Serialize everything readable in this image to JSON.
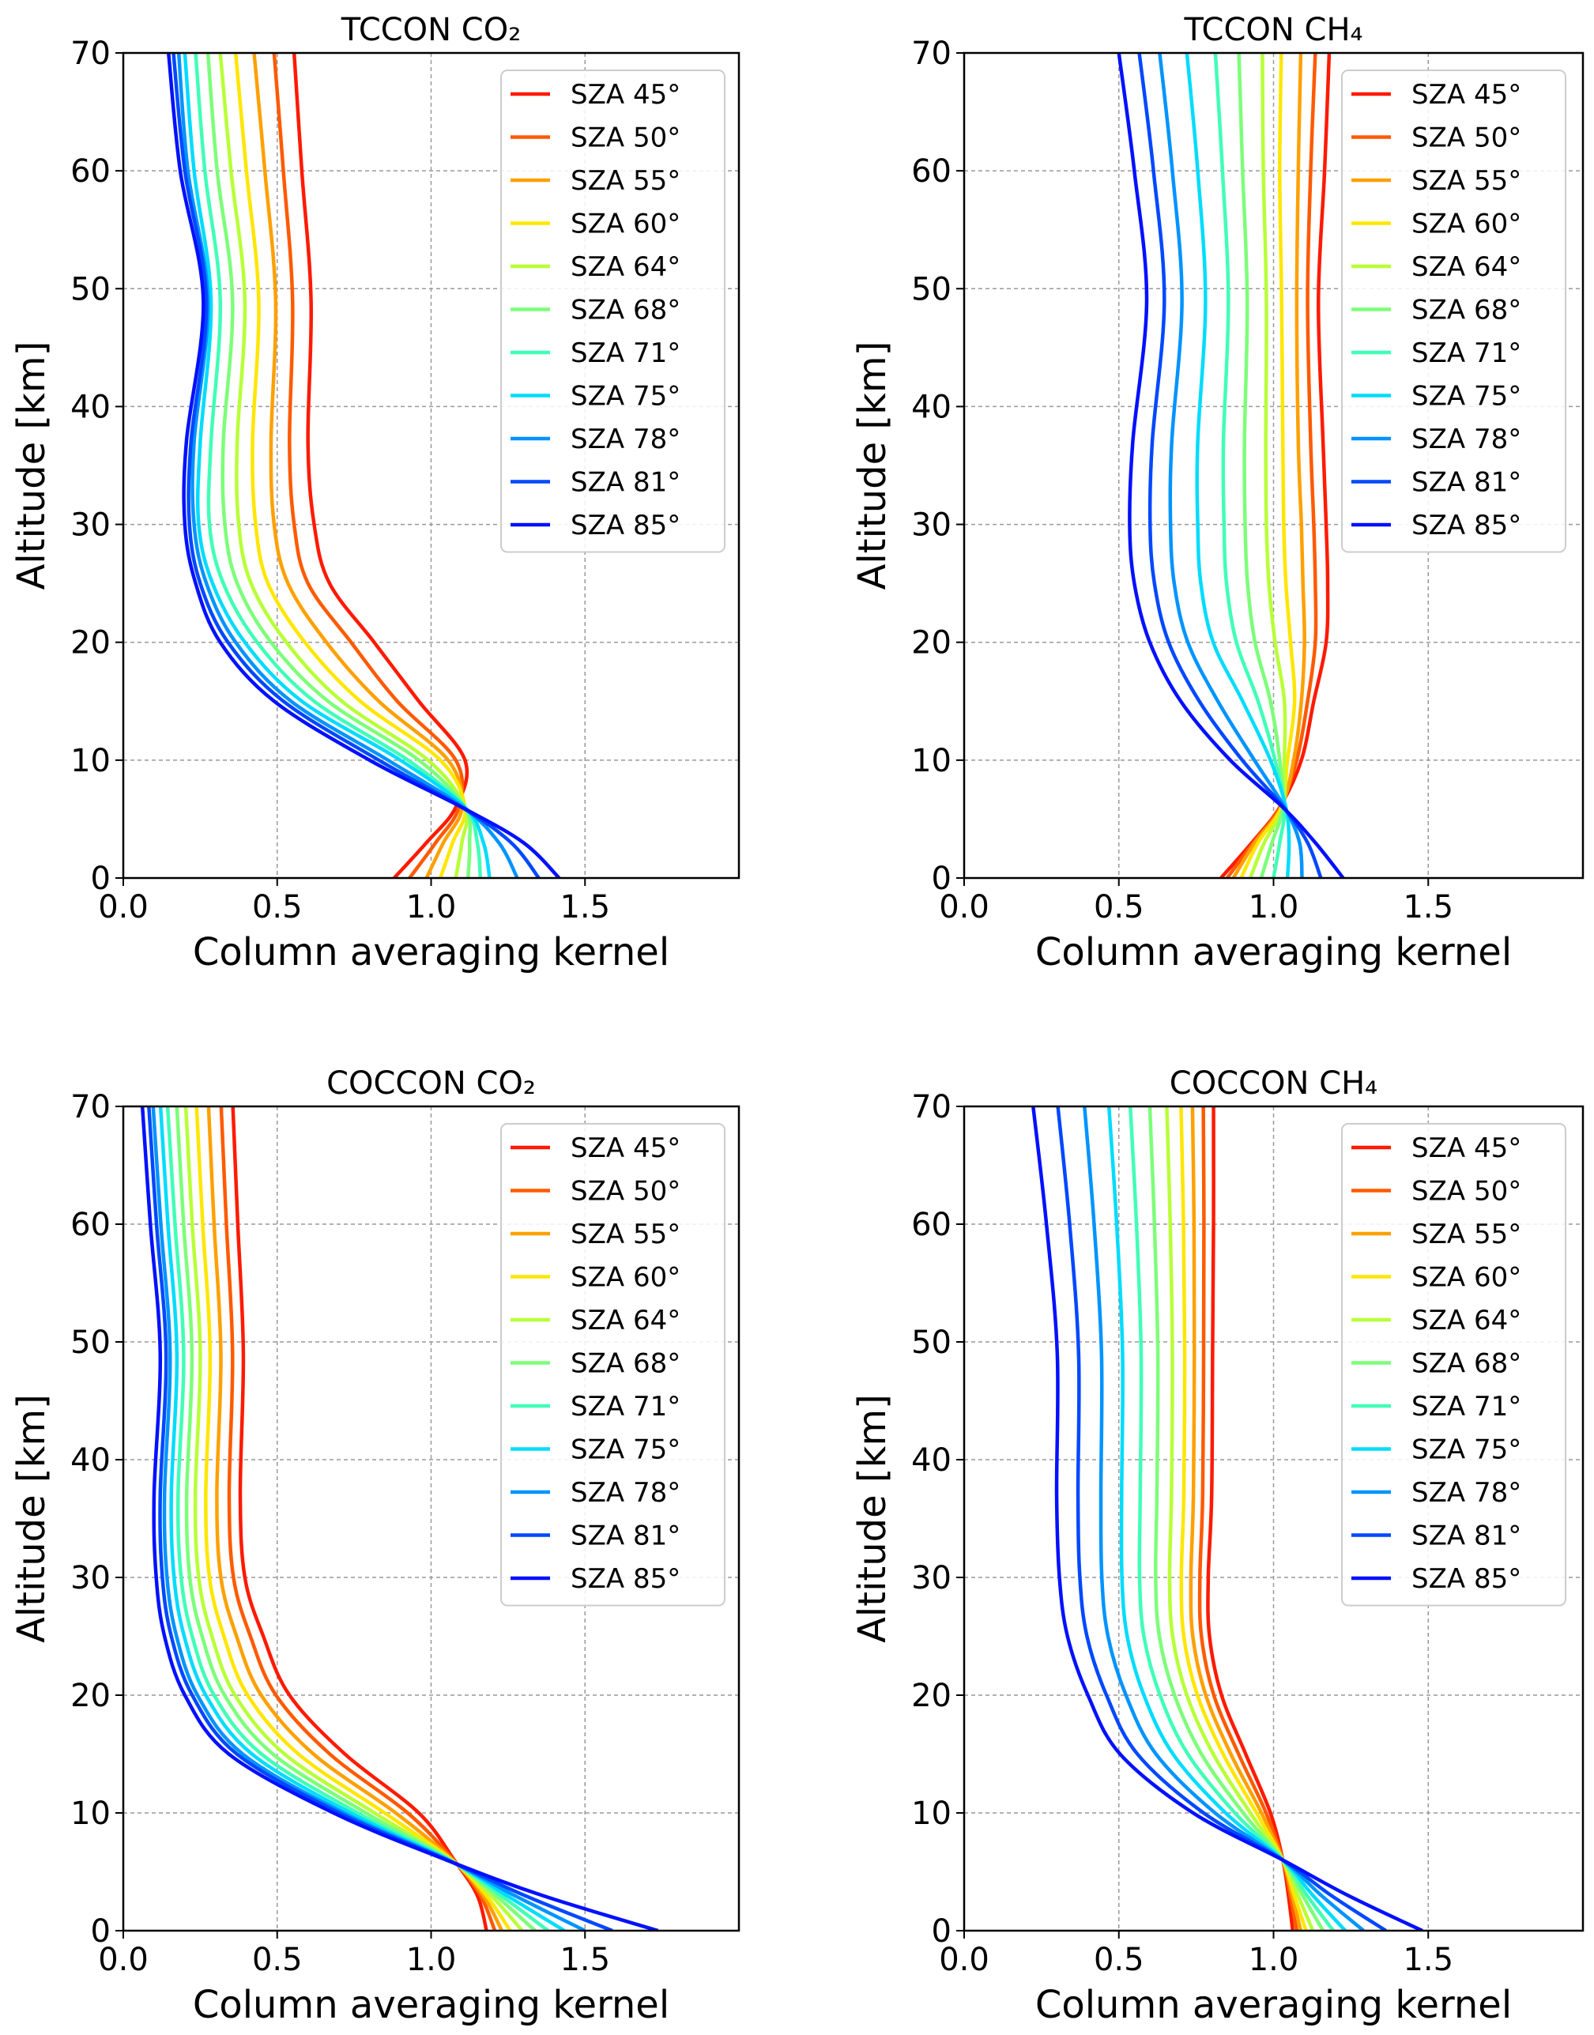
{
  "chart_data": [
    {
      "type": "line",
      "title": "TCCON CO₂",
      "xlabel": "Column averaging kernel",
      "ylabel": "Altitude [km]",
      "xlim": [
        0,
        2.0
      ],
      "ylim": [
        0,
        70
      ],
      "xticks": [
        "0.0",
        "0.5",
        "1.0",
        "1.5"
      ],
      "yticks": [
        "0",
        "10",
        "20",
        "30",
        "40",
        "50",
        "60",
        "70"
      ],
      "grid": true,
      "legend_position": "top-right",
      "y": [
        0,
        3,
        6,
        10,
        15,
        20,
        25,
        30,
        37,
        49,
        60,
        70
      ],
      "series": [
        {
          "name": "SZA 45°",
          "color": "#ff1a00",
          "x": [
            0.88,
            0.985,
            1.08,
            1.11,
            0.96,
            0.815,
            0.67,
            0.62,
            0.6,
            0.61,
            0.58,
            0.555
          ]
        },
        {
          "name": "SZA 50°",
          "color": "#ff5a00",
          "x": [
            0.93,
            1.015,
            1.09,
            1.08,
            0.89,
            0.74,
            0.6,
            0.555,
            0.54,
            0.55,
            0.52,
            0.49
          ]
        },
        {
          "name": "SZA 55°",
          "color": "#ffa000",
          "x": [
            0.985,
            1.04,
            1.1,
            1.055,
            0.83,
            0.66,
            0.535,
            0.49,
            0.48,
            0.495,
            0.46,
            0.425
          ]
        },
        {
          "name": "SZA 60°",
          "color": "#ffe600",
          "x": [
            1.03,
            1.07,
            1.11,
            1.03,
            0.77,
            0.59,
            0.47,
            0.43,
            0.42,
            0.44,
            0.4,
            0.365
          ]
        },
        {
          "name": "SZA 64°",
          "color": "#b8ff37",
          "x": [
            1.08,
            1.1,
            1.11,
            0.99,
            0.71,
            0.53,
            0.415,
            0.375,
            0.37,
            0.395,
            0.35,
            0.315
          ]
        },
        {
          "name": "SZA 68°",
          "color": "#7cff79",
          "x": [
            1.12,
            1.125,
            1.11,
            0.96,
            0.665,
            0.48,
            0.37,
            0.33,
            0.325,
            0.355,
            0.305,
            0.275
          ]
        },
        {
          "name": "SZA 71°",
          "color": "#40ffb7",
          "x": [
            1.16,
            1.15,
            1.11,
            0.925,
            0.62,
            0.435,
            0.325,
            0.28,
            0.285,
            0.315,
            0.265,
            0.235
          ]
        },
        {
          "name": "SZA 75°",
          "color": "#00dcfe",
          "x": [
            1.19,
            1.17,
            1.11,
            0.9,
            0.58,
            0.395,
            0.29,
            0.245,
            0.25,
            0.285,
            0.23,
            0.2
          ]
        },
        {
          "name": "SZA 78°",
          "color": "#0094ff",
          "x": [
            1.28,
            1.22,
            1.105,
            0.86,
            0.545,
            0.365,
            0.27,
            0.23,
            0.23,
            0.275,
            0.21,
            0.18
          ]
        },
        {
          "name": "SZA 81°",
          "color": "#0048ff",
          "x": [
            1.35,
            1.26,
            1.1,
            0.83,
            0.52,
            0.34,
            0.25,
            0.215,
            0.22,
            0.27,
            0.2,
            0.163
          ]
        },
        {
          "name": "SZA 85°",
          "color": "#0010ff",
          "x": [
            1.416,
            1.3,
            1.1,
            0.8,
            0.49,
            0.315,
            0.235,
            0.2,
            0.205,
            0.26,
            0.185,
            0.147
          ]
        }
      ]
    },
    {
      "type": "line",
      "title": "TCCON CH₄",
      "xlabel": "Column averaging kernel",
      "ylabel": "Altitude [km]",
      "xlim": [
        0,
        2.0
      ],
      "ylim": [
        0,
        70
      ],
      "xticks": [
        "0.0",
        "0.5",
        "1.0",
        "1.5"
      ],
      "yticks": [
        "0",
        "10",
        "20",
        "30",
        "40",
        "50",
        "60",
        "70"
      ],
      "grid": true,
      "legend_position": "top-right",
      "y": [
        0,
        3,
        6,
        10,
        15,
        20,
        25,
        30,
        37,
        49,
        60,
        70
      ],
      "series": [
        {
          "name": "SZA 45°",
          "color": "#ff1a00",
          "x": [
            0.83,
            0.93,
            1.02,
            1.09,
            1.13,
            1.17,
            1.175,
            1.17,
            1.16,
            1.145,
            1.165,
            1.18
          ]
        },
        {
          "name": "SZA 50°",
          "color": "#ff5a00",
          "x": [
            0.85,
            0.935,
            1.02,
            1.075,
            1.11,
            1.135,
            1.135,
            1.13,
            1.12,
            1.11,
            1.12,
            1.135
          ]
        },
        {
          "name": "SZA 55°",
          "color": "#ffa000",
          "x": [
            0.87,
            0.94,
            1.025,
            1.065,
            1.09,
            1.1,
            1.095,
            1.09,
            1.08,
            1.075,
            1.08,
            1.088
          ]
        },
        {
          "name": "SZA 60°",
          "color": "#ffe600",
          "x": [
            0.895,
            0.95,
            1.025,
            1.045,
            1.068,
            1.055,
            1.04,
            1.033,
            1.03,
            1.026,
            1.02,
            1.025
          ]
        },
        {
          "name": "SZA 64°",
          "color": "#b8ff37",
          "x": [
            0.925,
            0.97,
            1.03,
            1.035,
            1.035,
            1.005,
            0.985,
            0.977,
            0.975,
            0.977,
            0.967,
            0.964
          ]
        },
        {
          "name": "SZA 68°",
          "color": "#7cff79",
          "x": [
            0.96,
            0.995,
            1.03,
            1.02,
            0.99,
            0.94,
            0.916,
            0.908,
            0.906,
            0.915,
            0.9,
            0.888
          ]
        },
        {
          "name": "SZA 71°",
          "color": "#40ffb7",
          "x": [
            1.0,
            1.02,
            1.035,
            1.005,
            0.95,
            0.88,
            0.848,
            0.84,
            0.838,
            0.854,
            0.835,
            0.812
          ]
        },
        {
          "name": "SZA 75°",
          "color": "#00dcfe",
          "x": [
            1.045,
            1.05,
            1.04,
            0.99,
            0.9,
            0.805,
            0.765,
            0.755,
            0.755,
            0.78,
            0.755,
            0.72
          ]
        },
        {
          "name": "SZA 78°",
          "color": "#0094ff",
          "x": [
            1.092,
            1.084,
            1.036,
            0.938,
            0.82,
            0.723,
            0.679,
            0.667,
            0.671,
            0.704,
            0.673,
            0.632
          ]
        },
        {
          "name": "SZA 81°",
          "color": "#0048ff",
          "x": [
            1.153,
            1.11,
            1.033,
            0.899,
            0.76,
            0.661,
            0.615,
            0.601,
            0.608,
            0.647,
            0.612,
            0.566
          ]
        },
        {
          "name": "SZA 85°",
          "color": "#0010ff",
          "x": [
            1.225,
            1.135,
            1.03,
            0.86,
            0.7,
            0.6,
            0.55,
            0.535,
            0.545,
            0.59,
            0.55,
            0.5
          ]
        }
      ]
    },
    {
      "type": "line",
      "title": "COCCON CO₂",
      "xlabel": "Column averaging kernel",
      "ylabel": "Altitude [km]",
      "xlim": [
        0,
        2.0
      ],
      "ylim": [
        0,
        70
      ],
      "xticks": [
        "0.0",
        "0.5",
        "1.0",
        "1.5"
      ],
      "yticks": [
        "0",
        "10",
        "20",
        "30",
        "40",
        "50",
        "60",
        "70"
      ],
      "grid": true,
      "legend_position": "top-right",
      "y": [
        0,
        3,
        6,
        10,
        15,
        20,
        25,
        30,
        37,
        49,
        60,
        70
      ],
      "series": [
        {
          "name": "SZA 45°",
          "color": "#ff1a00",
          "x": [
            1.18,
            1.15,
            1.075,
            0.96,
            0.72,
            0.54,
            0.455,
            0.395,
            0.38,
            0.39,
            0.372,
            0.356
          ]
        },
        {
          "name": "SZA 50°",
          "color": "#ff5a00",
          "x": [
            1.207,
            1.16,
            1.073,
            0.924,
            0.671,
            0.496,
            0.413,
            0.358,
            0.344,
            0.355,
            0.335,
            0.318
          ]
        },
        {
          "name": "SZA 55°",
          "color": "#ffa000",
          "x": [
            1.23,
            1.169,
            1.07,
            0.885,
            0.618,
            0.448,
            0.368,
            0.317,
            0.304,
            0.317,
            0.295,
            0.277
          ]
        },
        {
          "name": "SZA 60°",
          "color": "#ffe600",
          "x": [
            1.257,
            1.179,
            1.068,
            0.849,
            0.569,
            0.404,
            0.327,
            0.28,
            0.268,
            0.282,
            0.258,
            0.238
          ]
        },
        {
          "name": "SZA 64°",
          "color": "#b8ff37",
          "x": [
            1.296,
            1.194,
            1.065,
            0.816,
            0.524,
            0.363,
            0.288,
            0.245,
            0.234,
            0.25,
            0.224,
            0.203
          ]
        },
        {
          "name": "SZA 68°",
          "color": "#7cff79",
          "x": [
            1.338,
            1.209,
            1.063,
            0.788,
            0.486,
            0.329,
            0.256,
            0.216,
            0.206,
            0.223,
            0.196,
            0.174
          ]
        },
        {
          "name": "SZA 71°",
          "color": "#40ffb7",
          "x": [
            1.38,
            1.226,
            1.06,
            0.761,
            0.449,
            0.295,
            0.224,
            0.188,
            0.178,
            0.196,
            0.168,
            0.144
          ]
        },
        {
          "name": "SZA 75°",
          "color": "#00dcfe",
          "x": [
            1.433,
            1.245,
            1.058,
            0.738,
            0.418,
            0.268,
            0.198,
            0.165,
            0.156,
            0.174,
            0.145,
            0.121
          ]
        },
        {
          "name": "SZA 78°",
          "color": "#0094ff",
          "x": [
            1.5,
            1.27,
            1.055,
            0.716,
            0.388,
            0.241,
            0.173,
            0.142,
            0.134,
            0.152,
            0.122,
            0.097
          ]
        },
        {
          "name": "SZA 81°",
          "color": "#0048ff",
          "x": [
            1.589,
            1.303,
            1.053,
            0.702,
            0.369,
            0.224,
            0.156,
            0.127,
            0.12,
            0.139,
            0.108,
            0.083
          ]
        },
        {
          "name": "SZA 85°",
          "color": "#0010ff",
          "x": [
            1.737,
            1.36,
            1.05,
            0.683,
            0.343,
            0.2,
            0.134,
            0.107,
            0.1,
            0.12,
            0.088,
            0.062
          ]
        }
      ]
    },
    {
      "type": "line",
      "title": "COCCON CH₄",
      "xlabel": "Column averaging kernel",
      "ylabel": "Altitude [km]",
      "xlim": [
        0,
        2.0
      ],
      "ylim": [
        0,
        70
      ],
      "xticks": [
        "0.0",
        "0.5",
        "1.0",
        "1.5"
      ],
      "yticks": [
        "0",
        "10",
        "20",
        "30",
        "40",
        "50",
        "60",
        "70"
      ],
      "grid": true,
      "legend_position": "top-right",
      "y": [
        0,
        3,
        6,
        10,
        15,
        20,
        25,
        30,
        37,
        49,
        60,
        70
      ],
      "series": [
        {
          "name": "SZA 45°",
          "color": "#ff1a00",
          "x": [
            1.062,
            1.048,
            1.03,
            0.99,
            0.91,
            0.832,
            0.793,
            0.789,
            0.8,
            0.803,
            0.806,
            0.806
          ]
        },
        {
          "name": "SZA 50°",
          "color": "#ff5a00",
          "x": [
            1.075,
            1.054,
            1.03,
            0.976,
            0.887,
            0.807,
            0.767,
            0.762,
            0.771,
            0.774,
            0.775,
            0.773
          ]
        },
        {
          "name": "SZA 55°",
          "color": "#ffa000",
          "x": [
            1.088,
            1.06,
            1.03,
            0.961,
            0.862,
            0.781,
            0.739,
            0.733,
            0.741,
            0.744,
            0.743,
            0.738
          ]
        },
        {
          "name": "SZA 60°",
          "color": "#ffe600",
          "x": [
            1.105,
            1.067,
            1.03,
            0.945,
            0.837,
            0.754,
            0.71,
            0.702,
            0.71,
            0.713,
            0.709,
            0.701
          ]
        },
        {
          "name": "SZA 64°",
          "color": "#b8ff37",
          "x": [
            1.127,
            1.079,
            1.03,
            0.925,
            0.805,
            0.72,
            0.674,
            0.664,
            0.67,
            0.673,
            0.666,
            0.655
          ]
        },
        {
          "name": "SZA 68°",
          "color": "#7cff79",
          "x": [
            1.16,
            1.094,
            1.03,
            0.902,
            0.767,
            0.68,
            0.631,
            0.619,
            0.623,
            0.626,
            0.615,
            0.6
          ]
        },
        {
          "name": "SZA 71°",
          "color": "#40ffb7",
          "x": [
            1.193,
            1.108,
            1.03,
            0.875,
            0.723,
            0.633,
            0.581,
            0.567,
            0.569,
            0.572,
            0.557,
            0.537
          ]
        },
        {
          "name": "SZA 75°",
          "color": "#00dcfe",
          "x": [
            1.232,
            1.127,
            1.03,
            0.845,
            0.675,
            0.581,
            0.527,
            0.51,
            0.509,
            0.512,
            0.493,
            0.468
          ]
        },
        {
          "name": "SZA 78°",
          "color": "#0094ff",
          "x": [
            1.291,
            1.154,
            1.03,
            0.811,
            0.62,
            0.523,
            0.465,
            0.445,
            0.442,
            0.444,
            0.42,
            0.389
          ]
        },
        {
          "name": "SZA 81°",
          "color": "#0048ff",
          "x": [
            1.363,
            1.186,
            1.03,
            0.774,
            0.56,
            0.46,
            0.397,
            0.374,
            0.368,
            0.37,
            0.341,
            0.303
          ]
        },
        {
          "name": "SZA 85°",
          "color": "#0010ff",
          "x": [
            1.481,
            1.24,
            1.03,
            0.74,
            0.504,
            0.4,
            0.334,
            0.308,
            0.299,
            0.301,
            0.266,
            0.223
          ]
        }
      ]
    }
  ]
}
